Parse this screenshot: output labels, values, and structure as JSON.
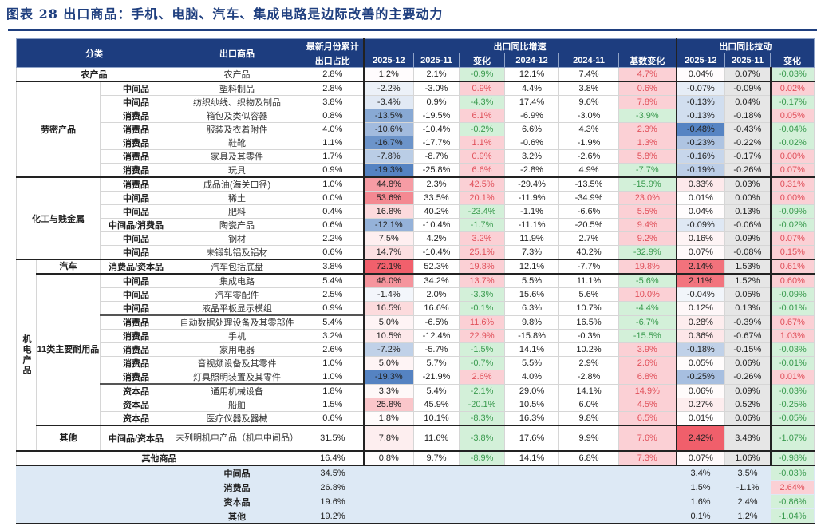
{
  "title": "图表 28   出口商品：手机、电脑、汽车、集成电路是边际改善的主要动力",
  "header": {
    "category": "分类",
    "product": "出口商品",
    "share_line1": "最新月份累计",
    "share_line2": "出口占比",
    "growth_group": "出口同比增速",
    "pull_group": "出口同比拉动",
    "growth_cols": [
      "2025-12",
      "2025-11",
      "变化",
      "2024-12",
      "2024-11",
      "基数变化"
    ],
    "pull_cols": [
      "2025-12",
      "2025-11",
      "变化"
    ]
  },
  "groups": [
    {
      "label": "农产品",
      "kind": "single",
      "rows": [
        {
          "product": "农产品",
          "share": "2.8%",
          "v": [
            "1.2%",
            "2.1%",
            "-0.9%",
            "12.1%",
            "7.4%",
            "4.7%",
            "0.04%",
            "0.07%",
            "-0.03%"
          ]
        }
      ]
    },
    {
      "label": "劳密产品",
      "rows": [
        {
          "type": "中间品",
          "product": "塑料制品",
          "share": "2.8%",
          "v": [
            "-2.2%",
            "-3.0%",
            "0.9%",
            "4.4%",
            "3.8%",
            "0.6%",
            "-0.07%",
            "-0.09%",
            "0.02%"
          ]
        },
        {
          "type": "中间品",
          "product": "纺织纱线、织物及制品",
          "share": "3.8%",
          "v": [
            "-3.4%",
            "0.9%",
            "-4.3%",
            "17.4%",
            "9.6%",
            "7.8%",
            "-0.13%",
            "0.04%",
            "-0.17%"
          ]
        },
        {
          "type": "消费品",
          "product": "箱包及类似容器",
          "share": "0.8%",
          "v": [
            "-13.5%",
            "-19.5%",
            "6.1%",
            "-6.9%",
            "-3.0%",
            "-3.9%",
            "-0.13%",
            "-0.18%",
            "0.05%"
          ]
        },
        {
          "type": "消费品",
          "product": "服装及衣着附件",
          "share": "4.0%",
          "v": [
            "-10.6%",
            "-10.4%",
            "-0.2%",
            "6.6%",
            "4.3%",
            "2.3%",
            "-0.48%",
            "-0.43%",
            "-0.04%"
          ]
        },
        {
          "type": "消费品",
          "product": "鞋靴",
          "share": "1.1%",
          "v": [
            "-16.7%",
            "-17.7%",
            "1.1%",
            "-0.6%",
            "-1.9%",
            "1.3%",
            "-0.23%",
            "-0.22%",
            "-0.02%"
          ]
        },
        {
          "type": "消费品",
          "product": "家具及其零件",
          "share": "1.7%",
          "v": [
            "-7.8%",
            "-8.7%",
            "0.9%",
            "3.2%",
            "-2.6%",
            "5.8%",
            "-0.16%",
            "-0.17%",
            "0.00%"
          ]
        },
        {
          "type": "消费品",
          "product": "玩具",
          "share": "0.9%",
          "v": [
            "-19.3%",
            "-25.8%",
            "6.6%",
            "-2.8%",
            "4.9%",
            "-7.7%",
            "-0.19%",
            "-0.26%",
            "0.07%"
          ]
        }
      ]
    },
    {
      "label": "化工与贱金属",
      "rows": [
        {
          "type": "消费品",
          "product": "成品油(海关口径)",
          "share": "1.0%",
          "v": [
            "44.8%",
            "2.3%",
            "42.5%",
            "-29.4%",
            "-13.5%",
            "-15.9%",
            "0.33%",
            "0.03%",
            "0.31%"
          ]
        },
        {
          "type": "中间品",
          "product": "稀土",
          "share": "0.0%",
          "v": [
            "53.6%",
            "33.5%",
            "20.1%",
            "-11.9%",
            "-34.9%",
            "23.0%",
            "0.01%",
            "0.00%",
            "0.00%"
          ]
        },
        {
          "type": "中间品",
          "product": "肥料",
          "share": "0.4%",
          "v": [
            "16.8%",
            "40.2%",
            "-23.4%",
            "-1.1%",
            "-6.6%",
            "5.5%",
            "0.04%",
            "0.13%",
            "-0.09%"
          ]
        },
        {
          "type": "中间品/消费品",
          "product": "陶瓷产品",
          "share": "0.6%",
          "v": [
            "-12.1%",
            "-10.4%",
            "-1.7%",
            "-11.1%",
            "-20.5%",
            "9.4%",
            "-0.09%",
            "-0.06%",
            "-0.02%"
          ]
        },
        {
          "type": "中间品",
          "product": "钢材",
          "share": "2.2%",
          "v": [
            "7.5%",
            "4.2%",
            "3.2%",
            "11.9%",
            "2.7%",
            "9.2%",
            "0.16%",
            "0.09%",
            "0.07%"
          ]
        },
        {
          "type": "中间品",
          "product": "未锻轧铝及铝材",
          "share": "0.6%",
          "v": [
            "14.7%",
            "-10.4%",
            "25.1%",
            "7.3%",
            "40.2%",
            "-32.9%",
            "0.07%",
            "-0.08%",
            "0.15%"
          ]
        }
      ]
    },
    {
      "label": "机电产品",
      "kind": "nested",
      "subgroups": [
        {
          "label": "汽车",
          "rows": [
            {
              "type": "消费品/资本品",
              "product": "汽车包括底盘",
              "share": "3.8%",
              "v": [
                "72.1%",
                "52.3%",
                "19.8%",
                "12.1%",
                "-7.7%",
                "19.8%",
                "2.14%",
                "1.53%",
                "0.61%"
              ]
            }
          ]
        },
        {
          "label": "11类主要耐用品",
          "rows": [
            {
              "type": "中间品",
              "product": "集成电路",
              "share": "5.4%",
              "v": [
                "48.0%",
                "34.2%",
                "13.7%",
                "5.5%",
                "11.1%",
                "-5.6%",
                "2.11%",
                "1.52%",
                "0.60%"
              ]
            },
            {
              "type": "中间品",
              "product": "汽车零配件",
              "share": "2.5%",
              "v": [
                "-1.4%",
                "2.0%",
                "-3.3%",
                "15.6%",
                "5.6%",
                "10.0%",
                "-0.04%",
                "0.05%",
                "-0.09%"
              ]
            },
            {
              "type": "中间品",
              "product": "液晶平板显示模组",
              "share": "0.9%",
              "v": [
                "16.5%",
                "16.6%",
                "-0.1%",
                "6.3%",
                "10.7%",
                "-4.4%",
                "0.12%",
                "0.13%",
                "-0.01%"
              ]
            },
            {
              "type": "消费品",
              "product": "自动数据处理设备及其零部件",
              "share": "5.4%",
              "v": [
                "5.0%",
                "-6.5%",
                "11.6%",
                "9.8%",
                "16.5%",
                "-6.7%",
                "0.28%",
                "-0.39%",
                "0.67%"
              ]
            },
            {
              "type": "消费品",
              "product": "手机",
              "share": "3.2%",
              "v": [
                "10.5%",
                "-12.4%",
                "22.9%",
                "-15.8%",
                "-0.3%",
                "-15.5%",
                "0.36%",
                "-0.67%",
                "1.03%"
              ]
            },
            {
              "type": "消费品",
              "product": "家用电器",
              "share": "2.6%",
              "v": [
                "-7.2%",
                "-5.7%",
                "-1.5%",
                "14.1%",
                "10.2%",
                "3.9%",
                "-0.18%",
                "-0.15%",
                "-0.03%"
              ]
            },
            {
              "type": "消费品",
              "product": "音视频设备及其零件",
              "share": "1.0%",
              "v": [
                "5.0%",
                "5.7%",
                "-0.7%",
                "5.5%",
                "2.9%",
                "2.6%",
                "0.05%",
                "0.06%",
                "-0.01%"
              ]
            },
            {
              "type": "消费品",
              "product": "灯具照明装置及其零件",
              "share": "1.0%",
              "v": [
                "-19.3%",
                "-21.9%",
                "2.6%",
                "4.0%",
                "-2.8%",
                "6.8%",
                "-0.25%",
                "-0.26%",
                "0.01%"
              ]
            },
            {
              "type": "资本品",
              "product": "通用机械设备",
              "share": "1.8%",
              "v": [
                "3.3%",
                "5.4%",
                "-2.1%",
                "29.0%",
                "14.1%",
                "14.9%",
                "0.06%",
                "0.09%",
                "-0.03%"
              ]
            },
            {
              "type": "资本品",
              "product": "船舶",
              "share": "1.5%",
              "v": [
                "25.8%",
                "45.9%",
                "-20.1%",
                "10.5%",
                "6.0%",
                "4.5%",
                "0.27%",
                "0.52%",
                "-0.25%"
              ]
            },
            {
              "type": "资本品",
              "product": "医疗仪器及器械",
              "share": "0.6%",
              "v": [
                "1.8%",
                "10.1%",
                "-8.3%",
                "16.3%",
                "9.8%",
                "6.5%",
                "0.01%",
                "0.06%",
                "-0.05%"
              ]
            }
          ]
        },
        {
          "label": "其他",
          "rows": [
            {
              "type": "中间品/资本品",
              "product": "未列明机电产品（机电中间品）",
              "share": "31.5%",
              "tall": true,
              "v": [
                "7.8%",
                "11.6%",
                "-3.8%",
                "17.6%",
                "9.9%",
                "7.6%",
                "2.42%",
                "3.48%",
                "-1.07%"
              ]
            }
          ]
        }
      ]
    },
    {
      "label": "其他商品",
      "kind": "total",
      "rows": [
        {
          "share": "16.4%",
          "v": [
            "0.8%",
            "9.7%",
            "-8.9%",
            "14.1%",
            "6.8%",
            "7.3%",
            "0.07%",
            "1.06%",
            "-0.98%"
          ]
        }
      ]
    }
  ],
  "summary": [
    {
      "label": "中间品",
      "share": "34.5%",
      "pull": [
        "3.4%",
        "3.5%",
        "-0.03%"
      ]
    },
    {
      "label": "消费品",
      "share": "26.8%",
      "pull": [
        "1.5%",
        "-1.1%",
        "2.64%"
      ]
    },
    {
      "label": "资本品",
      "share": "19.6%",
      "pull": [
        "1.6%",
        "2.4%",
        "-0.86%"
      ]
    },
    {
      "label": "其他",
      "share": "19.2%",
      "pull": [
        "0.1%",
        "1.2%",
        "-1.04%"
      ]
    }
  ],
  "colors": {
    "header_bg": "#1d3d7f",
    "pos_bg": "#fbd0d5",
    "pos_text": "#e0505a",
    "neg_bg": "#d3f0d9",
    "neg_text": "#3a9a4e",
    "summary_bg": "#dde9f5"
  }
}
